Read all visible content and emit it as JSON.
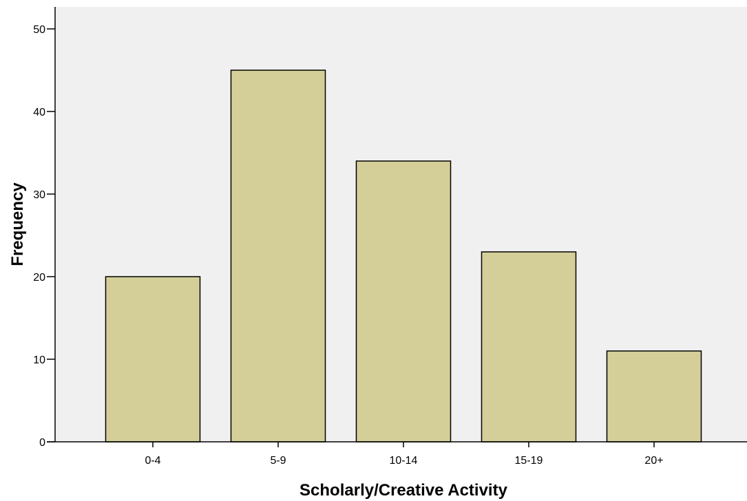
{
  "chart_data": {
    "type": "bar",
    "categories": [
      "0-4",
      "5-9",
      "10-14",
      "15-19",
      "20+"
    ],
    "values": [
      20,
      45,
      34,
      23,
      11
    ],
    "title": "",
    "xlabel": "Scholarly/Creative Activity",
    "ylabel": "Frequency",
    "ylim": [
      0,
      50
    ],
    "yticks": [
      0,
      10,
      20,
      30,
      40,
      50
    ],
    "grid": false,
    "legend": "none",
    "colors": {
      "plot_background": "#f0f0f0",
      "bar_fill": "#d4cf98",
      "bar_stroke": "#000000",
      "axis": "#000000"
    }
  }
}
